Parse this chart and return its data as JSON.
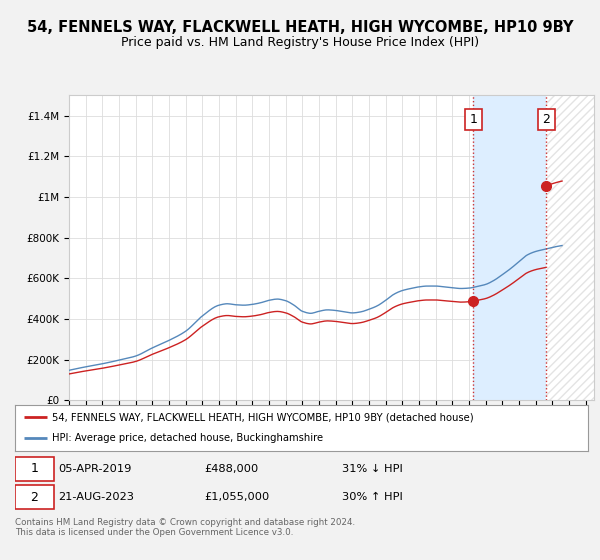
{
  "title": "54, FENNELS WAY, FLACKWELL HEATH, HIGH WYCOMBE, HP10 9BY",
  "subtitle": "Price paid vs. HM Land Registry's House Price Index (HPI)",
  "title_fontsize": 10.5,
  "subtitle_fontsize": 9,
  "ylabel_ticks": [
    "£0",
    "£200K",
    "£400K",
    "£600K",
    "£800K",
    "£1M",
    "£1.2M",
    "£1.4M"
  ],
  "ytick_values": [
    0,
    200000,
    400000,
    600000,
    800000,
    1000000,
    1200000,
    1400000
  ],
  "ylim": [
    0,
    1500000
  ],
  "xlim_start": 1995,
  "xlim_end": 2026.5,
  "background_color": "#f2f2f2",
  "plot_bg_color": "#ffffff",
  "hpi_color": "#5588bb",
  "price_color": "#cc2222",
  "grid_color": "#dddddd",
  "sale1_x": 2019.27,
  "sale1_y": 488000,
  "sale2_x": 2023.64,
  "sale2_y": 1055000,
  "sale1_label": "1",
  "sale2_label": "2",
  "vline_color": "#cc3333",
  "vline_style": ":",
  "legend_line1": "54, FENNELS WAY, FLACKWELL HEATH, HIGH WYCOMBE, HP10 9BY (detached house)",
  "legend_line2": "HPI: Average price, detached house, Buckinghamshire",
  "footer": "Contains HM Land Registry data © Crown copyright and database right 2024.\nThis data is licensed under the Open Government Licence v3.0.",
  "shade_color": "#ddeeff",
  "hatch_color": "#cccccc"
}
